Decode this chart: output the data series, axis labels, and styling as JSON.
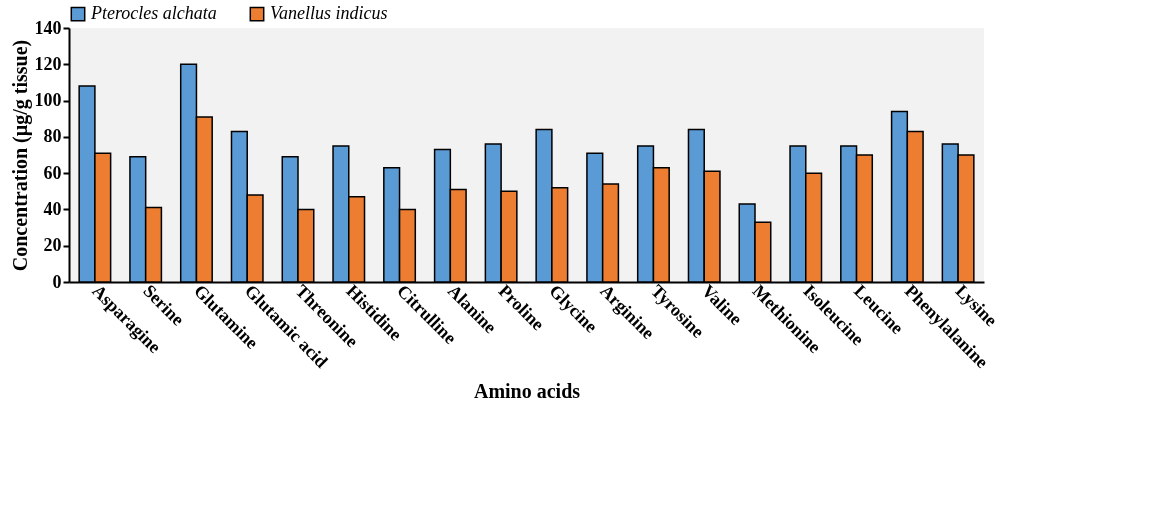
{
  "chart_data": {
    "type": "bar",
    "xlabel": "Amino acids",
    "ylabel": "Concentration (µg/g tissue)",
    "legend": "top",
    "categories": [
      "Asparagine",
      "Serine",
      "Glutamine",
      "Glutamic acid",
      "Threonine",
      "Histidine",
      "Citrulline",
      "Alanine",
      "Proline",
      "Glycine",
      "Arginine",
      "Tyrosine",
      "Valine",
      "Methionine",
      "Isoleucine",
      "Leucine",
      "Phenylalanine",
      "Lysine"
    ],
    "series": [
      {
        "name": "Pterocles alchata",
        "color": "#5b9bd5",
        "values": [
          108,
          69,
          120,
          83,
          69,
          75,
          63,
          73,
          76,
          84,
          71,
          75,
          84,
          43,
          75,
          75,
          94,
          76
        ]
      },
      {
        "name": "Vanellus indicus",
        "color": "#ed7d31",
        "values": [
          71,
          41,
          91,
          48,
          40,
          47,
          40,
          51,
          50,
          52,
          54,
          63,
          61,
          33,
          60,
          70,
          83,
          70
        ]
      }
    ],
    "ylim": [
      0,
      140
    ],
    "yticks": [
      0,
      20,
      40,
      60,
      80,
      100,
      120,
      140
    ]
  }
}
